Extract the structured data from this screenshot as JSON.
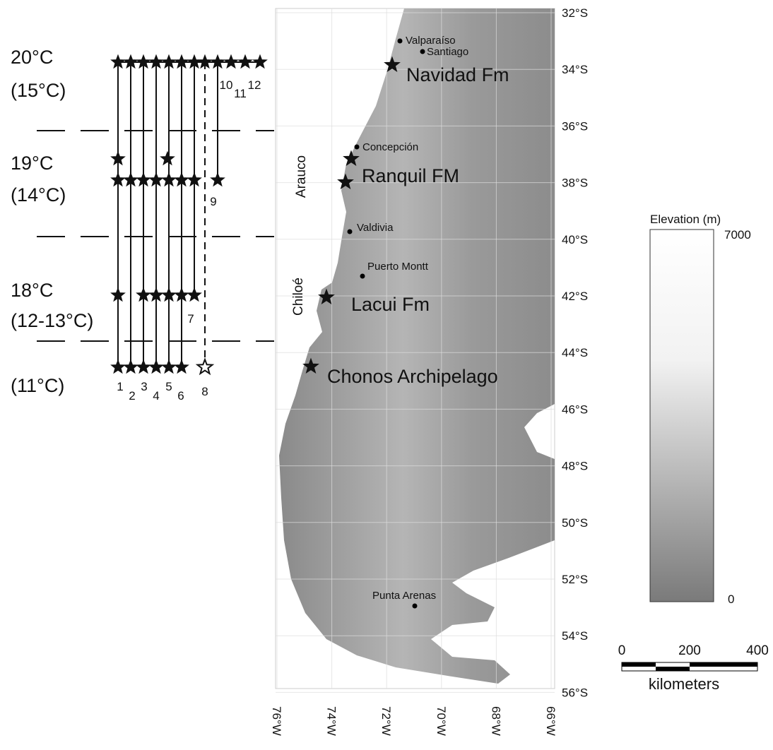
{
  "diagram": {
    "rows": [
      {
        "temp": "20°C",
        "range": "(15°C)"
      },
      {
        "temp": "19°C",
        "range": "(14°C)"
      },
      {
        "temp": "18°C",
        "range": "(12-13°C)"
      },
      {
        "range": "(11°C)"
      }
    ],
    "columns": [
      1,
      2,
      3,
      4,
      5,
      6,
      7,
      8,
      9,
      10,
      11,
      12
    ]
  },
  "map": {
    "places": [
      "Valparaíso",
      "Santiago",
      "Concepción",
      "Valdivia",
      "Puerto Montt",
      "Punta Arenas"
    ],
    "formations": [
      "Navidad Fm",
      "Ranquil FM",
      "Lacui Fm",
      "Chonos Archipelago"
    ],
    "regions": [
      "Arauco",
      "Chiloé"
    ],
    "latitudes": [
      "32°S",
      "34°S",
      "36°S",
      "38°S",
      "40°S",
      "42°S",
      "44°S",
      "46°S",
      "48°S",
      "50°S",
      "52°S",
      "54°S",
      "56°S"
    ],
    "longitudes": [
      "76°W",
      "74°W",
      "72°W",
      "70°W",
      "68°W",
      "66°W"
    ]
  },
  "legend": {
    "title": "Elevation (m)",
    "max": 7000,
    "min": 0
  },
  "scale": {
    "ticks": [
      0,
      200,
      400
    ],
    "unit": "kilometers"
  }
}
